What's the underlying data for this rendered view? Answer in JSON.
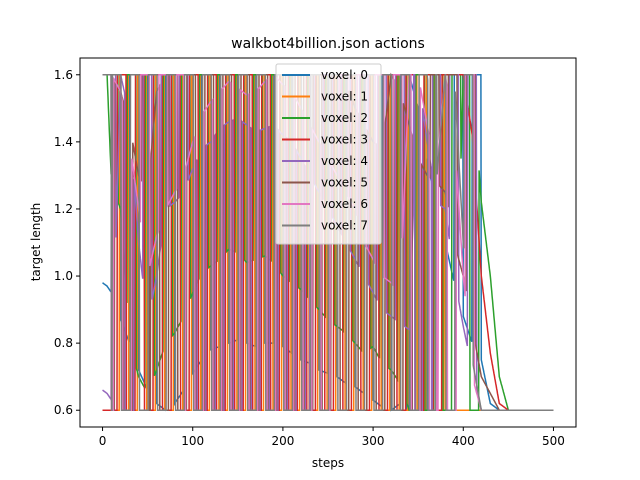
{
  "chart_data": {
    "type": "line",
    "title": "walkbot4billion.json actions",
    "xlabel": "steps",
    "ylabel": "target length",
    "xlim": [
      -25,
      525
    ],
    "ylim": [
      0.55,
      1.65
    ],
    "x_ticks": [
      0,
      100,
      200,
      300,
      400,
      500
    ],
    "y_ticks": [
      0.6,
      0.8,
      1.0,
      1.2,
      1.4,
      1.6
    ],
    "x_tick_labels": [
      "0",
      "100",
      "200",
      "300",
      "400",
      "500"
    ],
    "y_tick_labels": [
      "0.6",
      "0.8",
      "1.0",
      "1.2",
      "1.4",
      "1.6"
    ],
    "grid": false,
    "legend_position": "top-center",
    "series": [
      {
        "name": "voxel: 0",
        "color": "#1f77b4",
        "x": [
          0,
          5,
          10,
          20,
          30,
          40,
          50,
          60,
          70,
          80,
          90,
          100,
          110,
          120,
          130,
          140,
          150,
          160,
          170,
          180,
          190,
          200,
          210,
          220,
          230,
          240,
          250,
          260,
          270,
          280,
          290,
          300,
          310,
          320,
          330,
          340,
          350,
          360,
          370,
          380,
          390,
          400,
          410,
          420,
          430,
          440,
          450,
          460,
          470,
          480,
          490,
          500
        ],
        "values": [
          0.98,
          0.97,
          0.95,
          0.87,
          0.8,
          0.72,
          0.66,
          0.62,
          0.6,
          0.62,
          0.66,
          0.71,
          0.75,
          0.78,
          0.79,
          0.8,
          0.81,
          0.8,
          0.79,
          0.8,
          0.8,
          0.79,
          0.77,
          0.75,
          0.74,
          0.72,
          0.71,
          0.7,
          0.68,
          0.67,
          0.65,
          0.63,
          0.61,
          0.6,
          0.62,
          1.6,
          1.5,
          1.35,
          1.2,
          1.1,
          0.98,
          0.88,
          0.8,
          0.75,
          0.62,
          0.6,
          0.6,
          0.6,
          0.6,
          0.6,
          0.6,
          0.6
        ]
      },
      {
        "name": "voxel: 1",
        "color": "#ff7f0e",
        "x": [
          0,
          5,
          10,
          20,
          30,
          40,
          50,
          60,
          70,
          80,
          90,
          100,
          110,
          120,
          130,
          140,
          150,
          160,
          170,
          180,
          190,
          200,
          210,
          220,
          230,
          240,
          250,
          260,
          270,
          280,
          290,
          300,
          310,
          320,
          330,
          340,
          350,
          360,
          370,
          380,
          390,
          400,
          410,
          420,
          430,
          440,
          450,
          460,
          470,
          480,
          490,
          500
        ],
        "values": [
          0.6,
          0.6,
          0.6,
          0.6,
          0.6,
          0.6,
          0.6,
          0.6,
          0.6,
          0.6,
          0.6,
          0.6,
          0.6,
          0.6,
          0.6,
          0.6,
          0.6,
          0.6,
          0.6,
          0.6,
          0.6,
          0.6,
          0.6,
          0.6,
          0.6,
          0.6,
          0.6,
          0.6,
          0.6,
          0.6,
          0.6,
          0.6,
          0.6,
          0.6,
          0.6,
          0.6,
          0.6,
          0.6,
          0.6,
          0.6,
          0.6,
          0.6,
          0.6,
          0.6,
          0.6,
          0.6,
          0.6,
          0.6,
          0.6,
          0.6,
          0.6,
          0.6
        ]
      },
      {
        "name": "voxel: 2",
        "color": "#2ca02c",
        "x": [
          0,
          5,
          10,
          20,
          30,
          40,
          50,
          60,
          70,
          80,
          90,
          100,
          110,
          120,
          130,
          140,
          150,
          160,
          170,
          180,
          190,
          200,
          210,
          220,
          230,
          240,
          250,
          260,
          270,
          280,
          290,
          300,
          310,
          320,
          330,
          340,
          350,
          360,
          370,
          380,
          390,
          400,
          410,
          420,
          430,
          440,
          450,
          460,
          470,
          480,
          490,
          500
        ],
        "values": [
          1.6,
          1.6,
          1.27,
          1.2,
          0.8,
          0.7,
          0.65,
          0.72,
          0.8,
          0.83,
          0.88,
          0.95,
          1.01,
          1.03,
          1.05,
          1.08,
          1.07,
          1.04,
          1.05,
          1.06,
          1.04,
          1.0,
          0.98,
          0.96,
          0.93,
          0.9,
          0.87,
          0.85,
          0.83,
          0.8,
          0.77,
          0.79,
          0.74,
          0.72,
          0.68,
          0.6,
          0.6,
          0.6,
          0.6,
          0.6,
          0.6,
          1.6,
          1.6,
          1.22,
          1.0,
          0.7,
          0.6,
          0.6,
          0.6,
          0.6,
          0.6,
          0.6
        ]
      },
      {
        "name": "voxel: 3",
        "color": "#d62728",
        "x": [
          0,
          5,
          10,
          20,
          30,
          40,
          50,
          60,
          70,
          80,
          90,
          100,
          110,
          120,
          130,
          140,
          150,
          160,
          170,
          180,
          190,
          200,
          210,
          220,
          230,
          240,
          250,
          260,
          270,
          280,
          290,
          300,
          310,
          320,
          330,
          340,
          350,
          360,
          370,
          380,
          390,
          400,
          410,
          420,
          430,
          440,
          450,
          460,
          470,
          480,
          490,
          500
        ],
        "values": [
          0.6,
          0.6,
          0.6,
          0.6,
          0.6,
          0.6,
          0.6,
          0.6,
          0.6,
          0.6,
          0.6,
          0.6,
          0.6,
          0.6,
          0.6,
          0.6,
          0.6,
          0.6,
          0.6,
          0.6,
          0.6,
          0.6,
          0.6,
          0.6,
          0.6,
          0.6,
          0.6,
          0.6,
          0.6,
          0.6,
          0.6,
          0.6,
          0.6,
          0.6,
          0.6,
          0.6,
          0.6,
          0.6,
          0.6,
          1.6,
          1.6,
          1.6,
          1.42,
          1.0,
          0.77,
          0.62,
          0.6,
          0.6,
          0.6,
          0.6,
          0.6,
          0.6
        ]
      },
      {
        "name": "voxel: 4",
        "color": "#9467bd",
        "x": [
          0,
          5,
          10,
          20,
          30,
          40,
          50,
          60,
          70,
          80,
          90,
          100,
          110,
          120,
          130,
          140,
          150,
          160,
          170,
          180,
          190,
          200,
          210,
          220,
          230,
          240,
          250,
          260,
          270,
          280,
          290,
          300,
          310,
          320,
          330,
          340,
          350,
          360,
          370,
          380,
          390,
          400,
          410,
          420,
          430,
          440,
          450,
          460,
          470,
          480,
          490,
          500
        ],
        "values": [
          0.66,
          0.65,
          0.63,
          1.6,
          1.48,
          1.1,
          0.86,
          1.0,
          1.2,
          1.22,
          1.25,
          1.32,
          1.38,
          1.4,
          1.44,
          1.46,
          1.47,
          1.45,
          1.43,
          1.44,
          1.45,
          1.42,
          1.4,
          1.35,
          1.3,
          1.25,
          1.2,
          1.15,
          1.1,
          1.05,
          1.0,
          0.95,
          0.9,
          0.88,
          0.86,
          0.84,
          1.6,
          1.4,
          1.22,
          1.2,
          1.0,
          0.85,
          0.72,
          0.6,
          0.6,
          0.6,
          0.6,
          0.6,
          0.6,
          0.6,
          0.6,
          0.6
        ]
      },
      {
        "name": "voxel: 5",
        "color": "#8c564b",
        "x": [
          0,
          5,
          10,
          20,
          30,
          40,
          50,
          60,
          70,
          80,
          90,
          100,
          110,
          120,
          130,
          140,
          150,
          160,
          170,
          180,
          190,
          200,
          210,
          220,
          230,
          240,
          250,
          260,
          270,
          280,
          290,
          300,
          310,
          320,
          330,
          340,
          350,
          360,
          370,
          380,
          390,
          400,
          410,
          420,
          430,
          440,
          450,
          460,
          470,
          480,
          490,
          500
        ],
        "values": [
          1.6,
          1.6,
          1.6,
          1.55,
          1.45,
          1.3,
          1.24,
          1.55,
          1.6,
          1.6,
          1.6,
          1.6,
          1.6,
          1.6,
          1.6,
          1.6,
          1.6,
          1.6,
          1.6,
          1.6,
          1.6,
          1.6,
          1.6,
          1.6,
          1.6,
          1.6,
          1.6,
          1.6,
          1.58,
          1.5,
          1.45,
          1.4,
          1.38,
          1.6,
          1.55,
          1.45,
          1.35,
          1.3,
          1.28,
          1.25,
          1.1,
          1.0,
          0.85,
          0.7,
          0.65,
          0.6,
          0.6,
          0.6,
          0.6,
          0.6,
          0.6,
          0.6
        ]
      },
      {
        "name": "voxel: 6",
        "color": "#e377c2",
        "x": [
          0,
          5,
          10,
          20,
          30,
          40,
          50,
          60,
          70,
          80,
          90,
          100,
          110,
          120,
          130,
          140,
          150,
          160,
          170,
          180,
          190,
          200,
          210,
          220,
          230,
          240,
          250,
          260,
          270,
          280,
          290,
          300,
          310,
          320,
          330,
          340,
          350,
          360,
          370,
          380,
          390,
          400,
          410,
          420,
          430,
          440,
          450,
          460,
          470,
          480,
          490,
          500
        ],
        "values": [
          1.6,
          1.6,
          1.6,
          1.55,
          1.4,
          1.2,
          1.0,
          1.12,
          1.2,
          1.25,
          1.3,
          1.4,
          1.48,
          1.52,
          1.55,
          1.58,
          1.56,
          1.54,
          1.55,
          1.58,
          1.6,
          1.57,
          1.55,
          1.5,
          1.45,
          1.4,
          1.35,
          1.3,
          1.25,
          1.2,
          1.1,
          1.05,
          1.0,
          0.98,
          0.95,
          1.6,
          1.6,
          1.45,
          1.3,
          1.6,
          1.42,
          1.0,
          0.7,
          0.6,
          0.6,
          0.6,
          0.6,
          0.6,
          0.6,
          0.6,
          0.6,
          0.6
        ]
      },
      {
        "name": "voxel: 7",
        "color": "#7f7f7f",
        "x": [
          0,
          5,
          10,
          20,
          30,
          40,
          50,
          60,
          70,
          80,
          90,
          100,
          110,
          120,
          130,
          140,
          150,
          160,
          170,
          180,
          190,
          200,
          210,
          220,
          230,
          240,
          250,
          260,
          270,
          280,
          290,
          300,
          310,
          320,
          330,
          340,
          350,
          360,
          370,
          380,
          390,
          400,
          410,
          420,
          430,
          440,
          450,
          460,
          470,
          480,
          490,
          500
        ],
        "values": [
          1.6,
          1.6,
          1.6,
          1.6,
          1.6,
          1.6,
          1.6,
          1.6,
          1.6,
          1.6,
          1.6,
          1.6,
          1.6,
          1.6,
          1.6,
          1.6,
          1.6,
          1.6,
          1.6,
          1.6,
          1.6,
          1.6,
          1.6,
          1.6,
          1.6,
          1.6,
          1.6,
          1.6,
          1.6,
          1.6,
          1.6,
          1.6,
          1.6,
          1.6,
          1.6,
          1.6,
          1.6,
          1.6,
          1.27,
          1.6,
          1.6,
          1.1,
          0.75,
          0.6,
          0.6,
          0.6,
          0.6,
          0.6,
          0.6,
          0.6,
          0.6,
          0.6
        ]
      }
    ]
  }
}
